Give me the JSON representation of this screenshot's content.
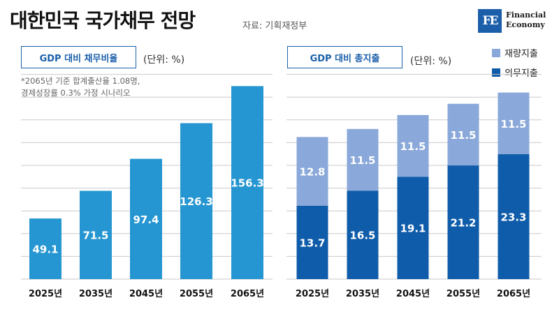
{
  "header": {
    "title": "대한민국 국가채무 전망",
    "source": "자료: 기획재정부"
  },
  "logo": {
    "mark": "FE",
    "line1": "Financial",
    "line2": "Economy"
  },
  "left_panel": {
    "tag": "GDP 대비 채무비율",
    "unit": "(단위: %)",
    "note_line1": "*2065년 기준 합계출산율 1.08명,",
    "note_line2": "경제성장률 0.3% 가정 시나리오"
  },
  "right_panel": {
    "tag": "GDP 대비 총지출",
    "unit": "(단위: %)"
  },
  "colors": {
    "bar_debt": "#2596d1",
    "mandatory": "#0f5caa",
    "discretionary": "#8aa8d9",
    "grid": "#c9c9c9",
    "accent": "#1b5faa"
  },
  "chart_data": [
    {
      "type": "bar",
      "categories": [
        "2025년",
        "2035년",
        "2045년",
        "2055년",
        "2065년"
      ],
      "values": [
        49.1,
        71.5,
        97.4,
        126.3,
        156.3
      ],
      "title": "GDP 대비 채무비율",
      "ylabel": "(단위: %)",
      "ylim": [
        0,
        165
      ],
      "grid": true
    },
    {
      "type": "bar",
      "stacked": true,
      "categories": [
        "2025년",
        "2035년",
        "2045년",
        "2055년",
        "2065년"
      ],
      "series": [
        {
          "name": "의무지출",
          "values": [
            13.7,
            16.5,
            19.1,
            21.2,
            23.3
          ]
        },
        {
          "name": "재량지출",
          "values": [
            12.8,
            11.5,
            11.5,
            11.5,
            11.5
          ]
        }
      ],
      "title": "GDP 대비 총지출",
      "ylabel": "(단위: %)",
      "ylim": [
        0,
        38
      ],
      "legend": "top-right",
      "grid": true
    }
  ]
}
